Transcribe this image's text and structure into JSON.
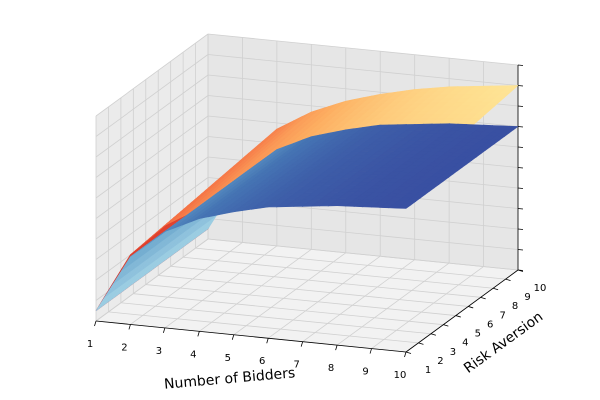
{
  "chart_data": {
    "type": "surface3d",
    "title": "",
    "xlabel": "Number of Bidders",
    "ylabel": "Risk Aversion",
    "zlabel": "",
    "x_ticks": [
      "1",
      "2",
      "3",
      "4",
      "5",
      "6",
      "7",
      "8",
      "9",
      "10"
    ],
    "y_ticks": [
      "1",
      "2",
      "3",
      "4",
      "5",
      "6",
      "7",
      "8",
      "9",
      "10"
    ],
    "xlim": [
      1,
      10
    ],
    "ylim": [
      1,
      10
    ],
    "zlim": [
      0,
      1
    ],
    "grid": true,
    "series": [
      {
        "colormap": "RdYlBu-like (dark red at low, pale yellow at high)",
        "x": [
          1,
          2,
          3,
          4,
          5,
          6,
          7,
          8,
          9,
          10
        ],
        "values_at_low_risk_aversion": [
          0.05,
          0.34,
          0.5,
          0.6,
          0.67,
          0.72,
          0.76,
          0.79,
          0.81,
          0.82
        ],
        "values_at_high_risk_aversion": [
          0.05,
          0.4,
          0.57,
          0.67,
          0.74,
          0.79,
          0.83,
          0.86,
          0.88,
          0.9
        ]
      },
      {
        "colormap": "Blues-like (light cyan at low, dark navy at high)",
        "x": [
          1,
          2,
          3,
          4,
          5,
          6,
          7,
          8,
          9,
          10
        ],
        "values_at_low_risk_aversion": [
          0.05,
          0.33,
          0.47,
          0.55,
          0.6,
          0.64,
          0.66,
          0.68,
          0.69,
          0.7
        ],
        "values_at_high_risk_aversion": [
          0.05,
          0.33,
          0.47,
          0.55,
          0.6,
          0.64,
          0.66,
          0.68,
          0.69,
          0.7
        ]
      }
    ]
  }
}
